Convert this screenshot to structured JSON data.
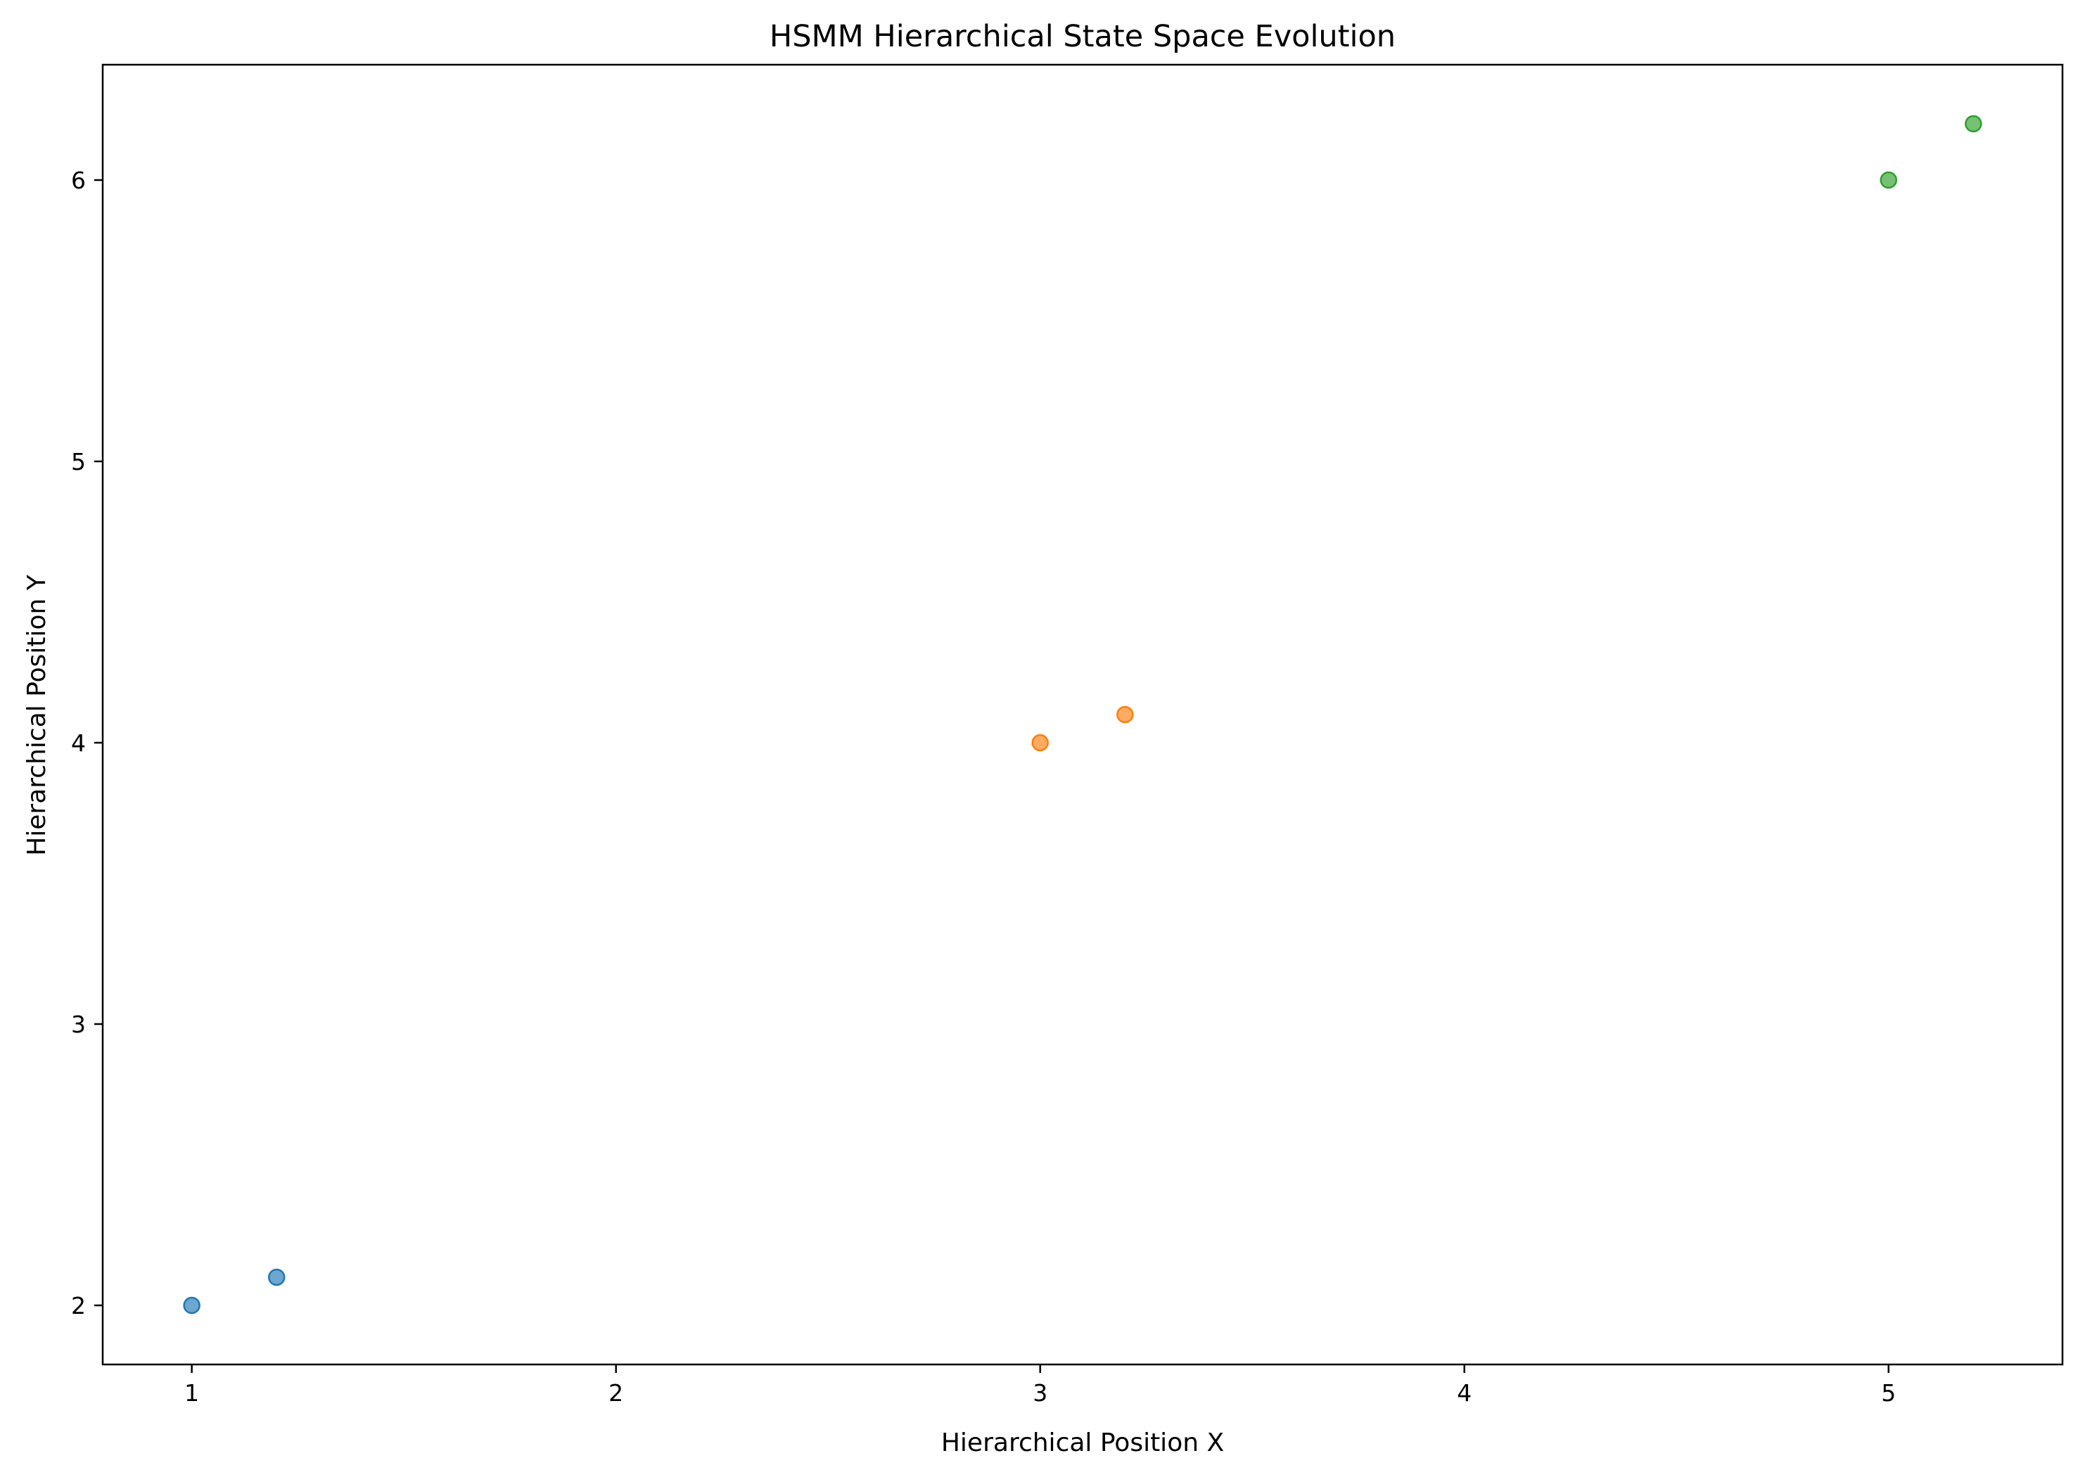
{
  "chart_data": {
    "type": "scatter",
    "title": "HSMM Hierarchical State Space Evolution",
    "xlabel": "Hierarchical Position X",
    "ylabel": "Hierarchical Position Y",
    "xlim": [
      0.79,
      5.41
    ],
    "ylim": [
      1.79,
      6.41
    ],
    "xticks": [
      1,
      2,
      3,
      4,
      5
    ],
    "yticks": [
      2,
      3,
      4,
      5,
      6
    ],
    "grid": false,
    "marker_alpha": 0.65,
    "series": [
      {
        "color": "#1f77b4",
        "points": [
          {
            "x": 1.0,
            "y": 2.0
          },
          {
            "x": 1.2,
            "y": 2.1
          }
        ]
      },
      {
        "color": "#ff7f0e",
        "points": [
          {
            "x": 3.0,
            "y": 4.0
          },
          {
            "x": 3.2,
            "y": 4.1
          }
        ]
      },
      {
        "color": "#2ca02c",
        "points": [
          {
            "x": 5.0,
            "y": 6.0
          },
          {
            "x": 5.2,
            "y": 6.2
          }
        ]
      }
    ]
  }
}
